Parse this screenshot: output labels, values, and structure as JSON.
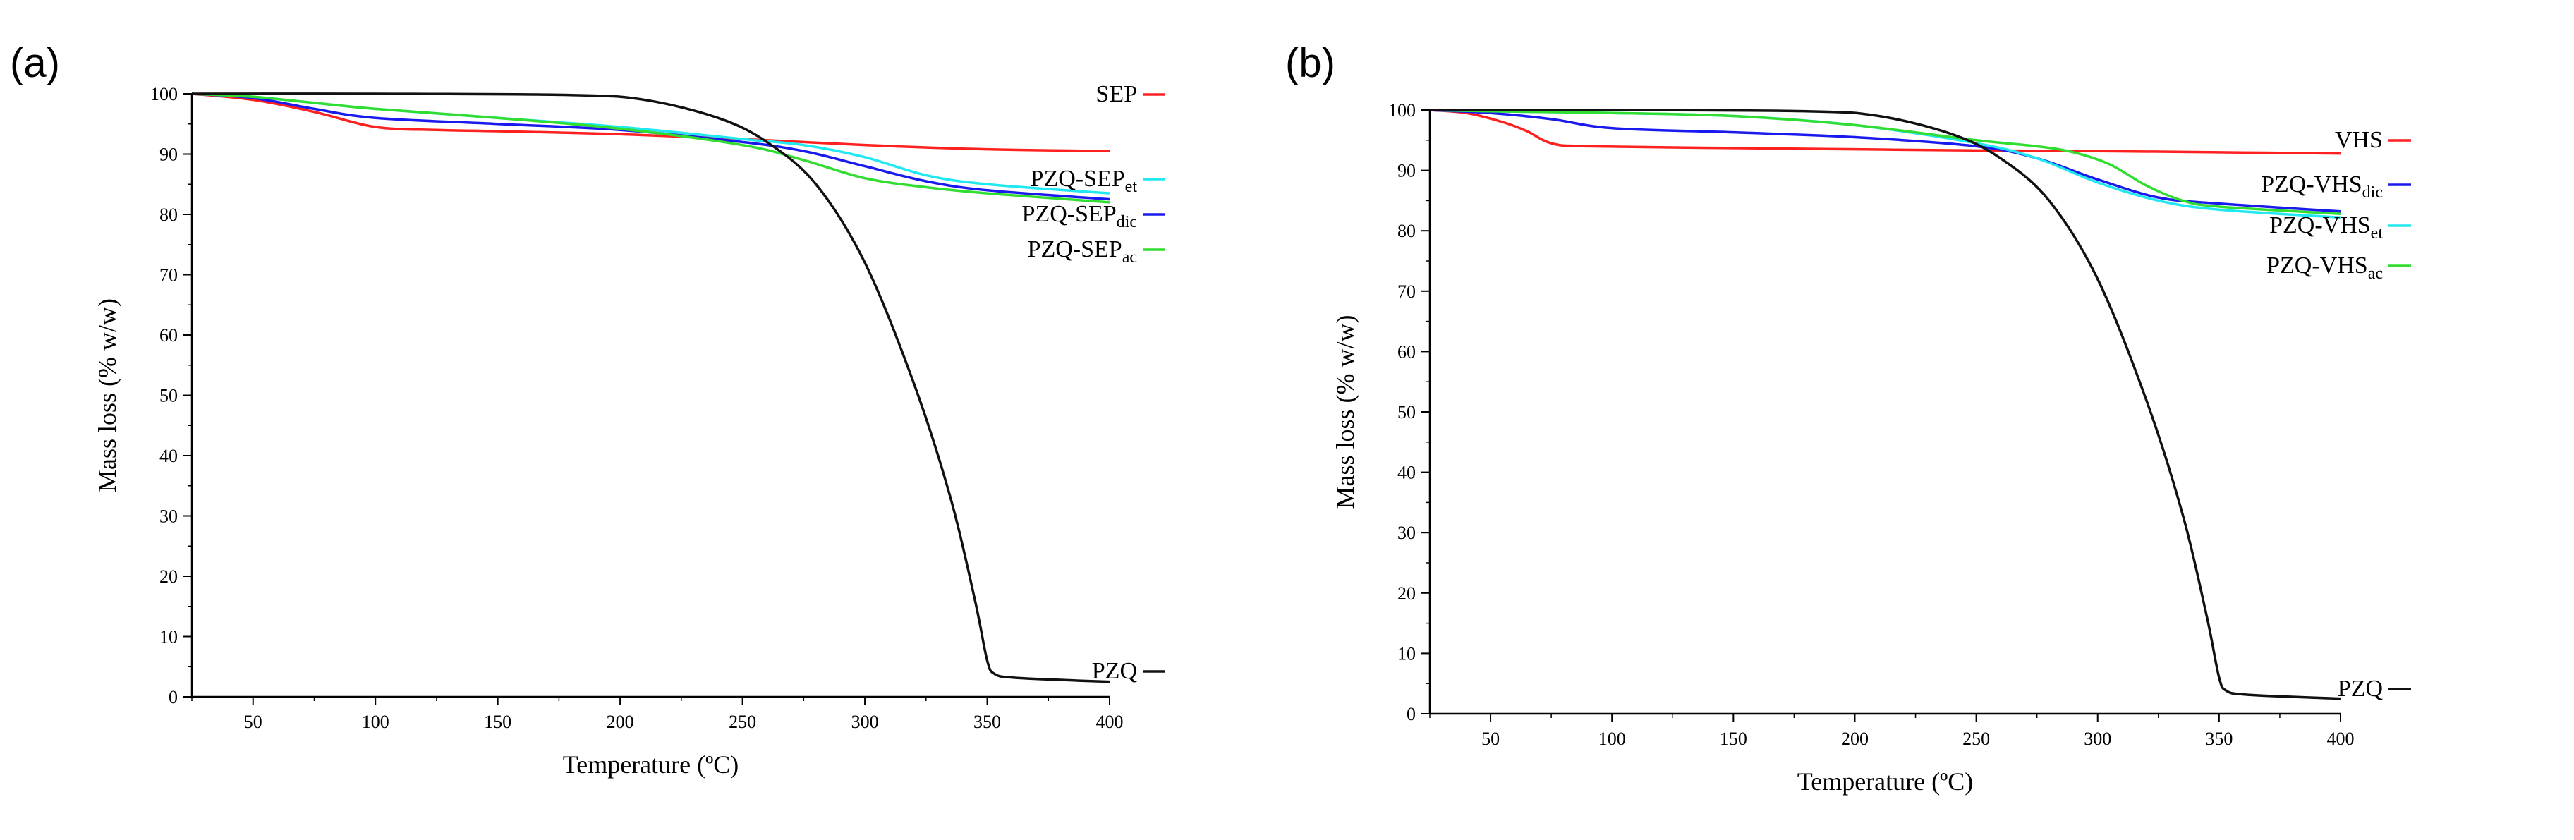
{
  "chart_data": [
    {
      "panel": "(a)",
      "type": "line",
      "xlabel": "Temperature (ºC)",
      "ylabel": "Mass loss (% w/w)",
      "xlim": [
        25,
        400
      ],
      "ylim": [
        0,
        100
      ],
      "xticks": [
        50,
        100,
        150,
        200,
        250,
        300,
        350,
        400
      ],
      "yticks": [
        0,
        10,
        20,
        30,
        40,
        50,
        60,
        70,
        80,
        90,
        100
      ],
      "series": [
        {
          "name": "SEP",
          "base": "SEP",
          "sub": "",
          "color": "#ff2020",
          "x": [
            25,
            50,
            75,
            100,
            125,
            150,
            200,
            250,
            300,
            350,
            400
          ],
          "y": [
            100,
            99,
            97,
            94.5,
            94,
            93.8,
            93.3,
            92.5,
            91.5,
            90.8,
            90.5
          ]
        },
        {
          "name": "PZQ-SEPet",
          "base": "PZQ-SEP",
          "sub": "et",
          "color": "#20e8f0",
          "x": [
            25,
            50,
            75,
            100,
            150,
            200,
            250,
            275,
            300,
            325,
            350,
            400
          ],
          "y": [
            100,
            99.5,
            98.5,
            97.5,
            96,
            94.5,
            92.5,
            91.5,
            89.5,
            86.5,
            85,
            83.5
          ]
        },
        {
          "name": "PZQ-SEPdic",
          "base": "PZQ-SEP",
          "sub": "dic",
          "color": "#1a1aee",
          "x": [
            25,
            50,
            75,
            100,
            150,
            200,
            250,
            275,
            300,
            325,
            350,
            400
          ],
          "y": [
            100,
            99.3,
            97.5,
            96,
            95,
            94,
            92,
            90.5,
            88,
            85.5,
            84,
            82.5
          ]
        },
        {
          "name": "PZQ-SEPac",
          "base": "PZQ-SEP",
          "sub": "ac",
          "color": "#30dd30",
          "x": [
            25,
            50,
            75,
            100,
            150,
            200,
            250,
            275,
            300,
            325,
            350,
            400
          ],
          "y": [
            100,
            99.5,
            98.5,
            97.5,
            96,
            94.2,
            91.5,
            89,
            86,
            84.5,
            83.5,
            82
          ]
        },
        {
          "name": "PZQ",
          "base": "PZQ",
          "sub": "",
          "color": "#111111",
          "x": [
            25,
            100,
            180,
            210,
            240,
            260,
            280,
            300,
            320,
            335,
            345,
            350,
            353,
            360,
            380,
            400
          ],
          "y": [
            100,
            100,
            99.8,
            99,
            96,
            92,
            85,
            72,
            52,
            33,
            16,
            6,
            3.8,
            3.2,
            2.8,
            2.5
          ]
        }
      ]
    },
    {
      "panel": "(b)",
      "type": "line",
      "xlabel": "Temperature (ºC)",
      "ylabel": "Mass loss (% w/w)",
      "xlim": [
        25,
        400
      ],
      "ylim": [
        0,
        100
      ],
      "xticks": [
        50,
        100,
        150,
        200,
        250,
        300,
        350,
        400
      ],
      "yticks": [
        0,
        10,
        20,
        30,
        40,
        50,
        60,
        70,
        80,
        90,
        100
      ],
      "series": [
        {
          "name": "VHS",
          "base": "VHS",
          "sub": "",
          "color": "#ff2020",
          "x": [
            25,
            40,
            55,
            65,
            75,
            90,
            150,
            200,
            250,
            300,
            350,
            400
          ],
          "y": [
            100,
            99.5,
            98,
            96.5,
            94.5,
            94,
            93.7,
            93.5,
            93.3,
            93.2,
            93,
            92.8
          ]
        },
        {
          "name": "PZQ-VHSdic",
          "base": "PZQ-VHS",
          "sub": "dic",
          "color": "#1a1aee",
          "x": [
            25,
            50,
            75,
            100,
            150,
            200,
            250,
            275,
            300,
            325,
            350,
            400
          ],
          "y": [
            100,
            99.5,
            98.5,
            97,
            96.3,
            95.5,
            94,
            92,
            88.5,
            85.5,
            84.5,
            83.2
          ]
        },
        {
          "name": "PZQ-VHSet",
          "base": "PZQ-VHS",
          "sub": "et",
          "color": "#20e8f0",
          "x": [
            25,
            50,
            100,
            150,
            200,
            250,
            275,
            300,
            325,
            350,
            400
          ],
          "y": [
            100,
            99.8,
            99.5,
            99,
            97.5,
            94.5,
            92,
            88,
            85,
            83.5,
            82.2
          ]
        },
        {
          "name": "PZQ-VHSac",
          "base": "PZQ-VHS",
          "sub": "ac",
          "color": "#30dd30",
          "x": [
            25,
            50,
            100,
            150,
            200,
            250,
            275,
            290,
            305,
            320,
            335,
            350,
            400
          ],
          "y": [
            100,
            99.8,
            99.5,
            99,
            97.5,
            95,
            94,
            93,
            91,
            87.5,
            85,
            84,
            82.8
          ]
        },
        {
          "name": "PZQ",
          "base": "PZQ",
          "sub": "",
          "color": "#111111",
          "x": [
            25,
            100,
            180,
            210,
            240,
            260,
            280,
            300,
            320,
            335,
            345,
            350,
            353,
            360,
            380,
            400
          ],
          "y": [
            100,
            100,
            99.8,
            99,
            96,
            92,
            85,
            72,
            52,
            33,
            16,
            6,
            3.8,
            3.2,
            2.8,
            2.5
          ]
        }
      ]
    }
  ]
}
